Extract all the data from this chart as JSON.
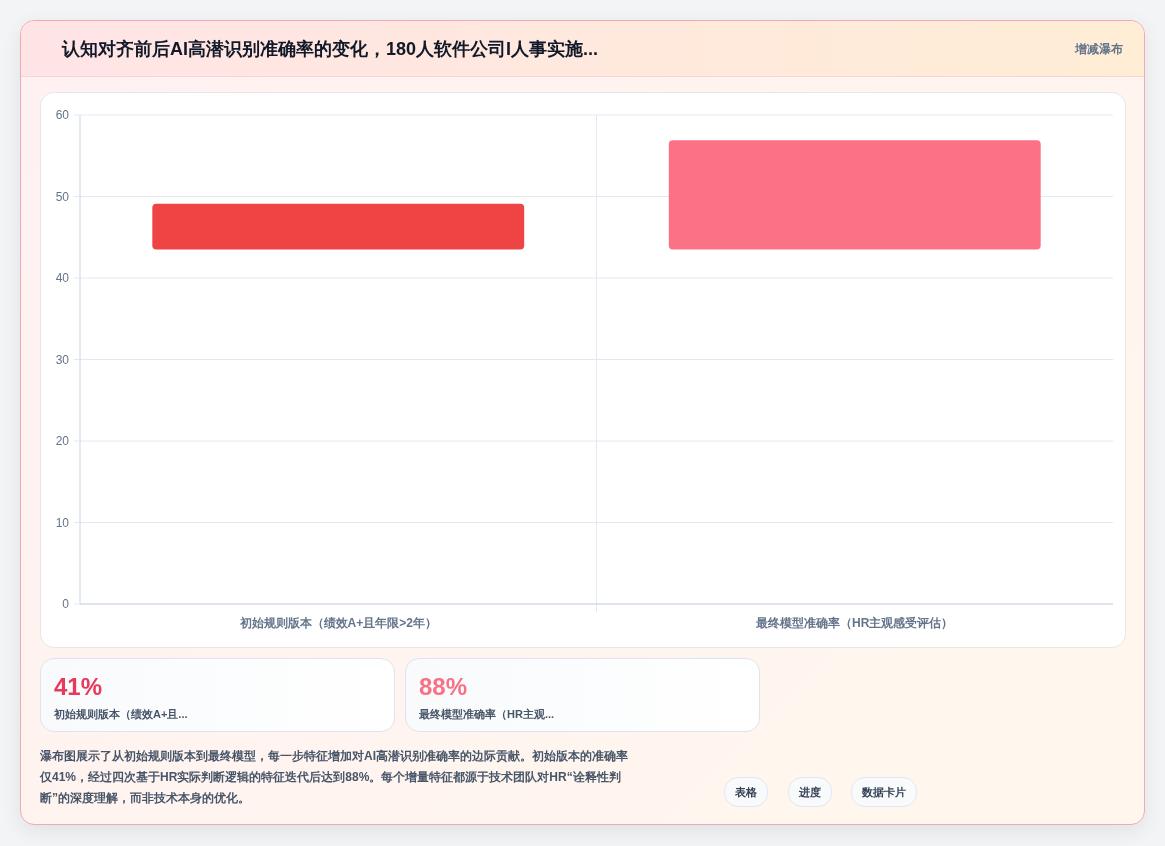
{
  "chart_data": [
    {
      "type": "bar",
      "title": "认知对齐前后AI高潜识别准确率的变化，180人软件公司I人事实施...",
      "annotations": [
        "增减瀑布"
      ],
      "categories": [
        "初始规则版本（绩效A+且年限>2年）",
        "最终模型准确率（HR主观感受评估）"
      ],
      "values": [
        5.6,
        13.4
      ],
      "base": [
        43.5,
        43.5
      ],
      "colors": [
        "#ef4444",
        "#fb7185"
      ],
      "ylim": [
        0,
        60
      ],
      "yticks": [
        0,
        10,
        20,
        30,
        40,
        50,
        60
      ],
      "grid": true
    },
    {
      "type": "other",
      "annotations": [
        "41%",
        "初始规则版本（绩效A+且...",
        "88%",
        "最终模型准确率（HR主观...",
        "瀑布图展示了从初始规则版本到最终模型，每一步特征增加对AI高潜识别准确率的边际贡献。初始版本的准确率仅41%，经过四次基于HR实际判断逻辑的特征迭代后达到88%。每个增量特征都源于技术团队对HR“诠释性判断”的深度理解，而非技术本身的优化。",
        "表格",
        "进度",
        "数据卡片"
      ]
    }
  ]
}
